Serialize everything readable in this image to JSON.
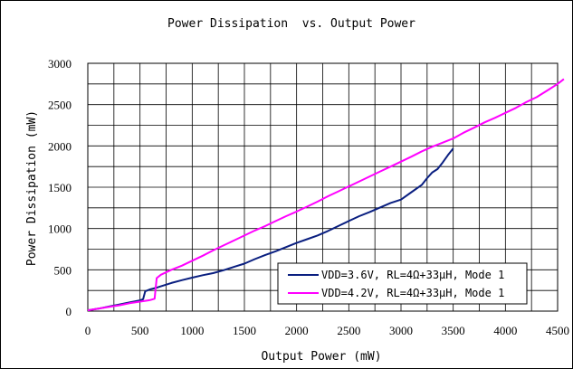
{
  "chart_data": {
    "type": "line",
    "title": "Power Dissipation  vs. Output Power",
    "xlabel": "Output Power (mW)",
    "ylabel": "Power Dissipation (mW)",
    "xlim": [
      0,
      4500
    ],
    "ylim": [
      0,
      3000
    ],
    "x_ticks": [
      0,
      500,
      1000,
      1500,
      2000,
      2500,
      3000,
      3500,
      4000,
      4500
    ],
    "y_ticks": [
      0,
      500,
      1000,
      1500,
      2000,
      2500,
      3000
    ],
    "x_tick_labels": [
      "0",
      "500",
      "1000",
      "1500",
      "2000",
      "2500",
      "3000",
      "3500",
      "4000",
      "4500"
    ],
    "y_tick_labels": [
      "0",
      "500",
      "1000",
      "1500",
      "2000",
      "2500",
      "3000"
    ],
    "x_minor_step": 250,
    "y_minor_step": 250,
    "grid": true,
    "legend_position": "bottom-right",
    "series": [
      {
        "name": "VDD=3.6V, RL=4Ω+33µH, Mode 1",
        "color": "#0a1f80",
        "points": [
          [
            0,
            10
          ],
          [
            100,
            30
          ],
          [
            200,
            55
          ],
          [
            300,
            80
          ],
          [
            400,
            105
          ],
          [
            500,
            130
          ],
          [
            530,
            145
          ],
          [
            550,
            240
          ],
          [
            600,
            265
          ],
          [
            650,
            280
          ],
          [
            700,
            300
          ],
          [
            800,
            340
          ],
          [
            900,
            375
          ],
          [
            1000,
            405
          ],
          [
            1100,
            435
          ],
          [
            1200,
            460
          ],
          [
            1300,
            495
          ],
          [
            1400,
            535
          ],
          [
            1500,
            575
          ],
          [
            1600,
            630
          ],
          [
            1700,
            680
          ],
          [
            1800,
            725
          ],
          [
            1900,
            775
          ],
          [
            2000,
            825
          ],
          [
            2100,
            870
          ],
          [
            2200,
            915
          ],
          [
            2300,
            970
          ],
          [
            2400,
            1030
          ],
          [
            2500,
            1090
          ],
          [
            2600,
            1150
          ],
          [
            2700,
            1200
          ],
          [
            2800,
            1255
          ],
          [
            2900,
            1310
          ],
          [
            3000,
            1350
          ],
          [
            3100,
            1440
          ],
          [
            3200,
            1530
          ],
          [
            3250,
            1610
          ],
          [
            3300,
            1680
          ],
          [
            3350,
            1720
          ],
          [
            3400,
            1800
          ],
          [
            3450,
            1890
          ],
          [
            3500,
            1970
          ]
        ]
      },
      {
        "name": "VDD=4.2V, RL=4Ω+33µH, Mode 1",
        "color": "#ff00ff",
        "points": [
          [
            0,
            10
          ],
          [
            100,
            30
          ],
          [
            200,
            50
          ],
          [
            300,
            70
          ],
          [
            400,
            95
          ],
          [
            500,
            115
          ],
          [
            580,
            130
          ],
          [
            600,
            135
          ],
          [
            640,
            150
          ],
          [
            660,
            400
          ],
          [
            700,
            440
          ],
          [
            800,
            500
          ],
          [
            900,
            550
          ],
          [
            1000,
            610
          ],
          [
            1100,
            670
          ],
          [
            1200,
            735
          ],
          [
            1300,
            795
          ],
          [
            1400,
            855
          ],
          [
            1500,
            915
          ],
          [
            1600,
            975
          ],
          [
            1700,
            1030
          ],
          [
            1800,
            1090
          ],
          [
            1900,
            1150
          ],
          [
            2000,
            1205
          ],
          [
            2100,
            1265
          ],
          [
            2200,
            1325
          ],
          [
            2300,
            1390
          ],
          [
            2400,
            1450
          ],
          [
            2500,
            1510
          ],
          [
            2600,
            1570
          ],
          [
            2700,
            1630
          ],
          [
            2800,
            1690
          ],
          [
            2900,
            1750
          ],
          [
            3000,
            1810
          ],
          [
            3100,
            1870
          ],
          [
            3200,
            1935
          ],
          [
            3300,
            1990
          ],
          [
            3400,
            2040
          ],
          [
            3500,
            2090
          ],
          [
            3600,
            2160
          ],
          [
            3700,
            2220
          ],
          [
            3800,
            2285
          ],
          [
            3900,
            2340
          ],
          [
            4000,
            2400
          ],
          [
            4100,
            2460
          ],
          [
            4200,
            2530
          ],
          [
            4300,
            2590
          ],
          [
            4400,
            2670
          ],
          [
            4500,
            2750
          ],
          [
            4560,
            2810
          ]
        ]
      }
    ]
  }
}
